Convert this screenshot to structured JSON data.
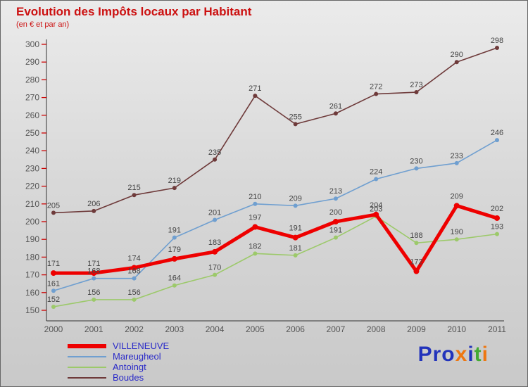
{
  "header": {
    "title": "Evolution des Impôts locaux par Habitant",
    "subtitle": "(en € et par an)"
  },
  "chart_data": {
    "type": "line",
    "title": "Evolution des Impôts locaux par Habitant",
    "subtitle": "(en € et par an)",
    "categories": [
      "2000",
      "2001",
      "2002",
      "2003",
      "2004",
      "2005",
      "2006",
      "2007",
      "2008",
      "2009",
      "2010",
      "2011"
    ],
    "series": [
      {
        "name": "VILLENEUVE",
        "color": "#ee0000",
        "width": 5,
        "marker": 4,
        "values": [
          171,
          171,
          174,
          179,
          183,
          197,
          191,
          200,
          204,
          172,
          209,
          202
        ]
      },
      {
        "name": "Mareugheol",
        "color": "#6f9fd0",
        "width": 1.6,
        "marker": 3,
        "values": [
          161,
          168,
          168,
          191,
          201,
          210,
          209,
          213,
          224,
          230,
          233,
          246
        ]
      },
      {
        "name": "Antoingt",
        "color": "#9cc96a",
        "width": 1.6,
        "marker": 3,
        "values": [
          152,
          156,
          156,
          164,
          170,
          182,
          181,
          191,
          203,
          188,
          190,
          193
        ]
      },
      {
        "name": "Boudes",
        "color": "#6e3a3a",
        "width": 1.6,
        "marker": 3,
        "values": [
          205,
          206,
          215,
          219,
          235,
          271,
          255,
          261,
          272,
          273,
          290,
          298
        ]
      }
    ],
    "ylim": [
      150,
      300
    ],
    "ytick_step": 10,
    "grid": false,
    "legend_position": "bottom-left",
    "axis_color": "#333333",
    "tick_color": "#cc0000",
    "label_color": "#444444",
    "axis_text_color": "#555555"
  },
  "legend": {
    "items": [
      {
        "label": "VILLENEUVE"
      },
      {
        "label": "Mareugheol"
      },
      {
        "label": "Antoingt"
      },
      {
        "label": "Boudes"
      }
    ]
  },
  "logo": {
    "letters": [
      {
        "ch": "P",
        "color": "#2233bb"
      },
      {
        "ch": "r",
        "color": "#2233bb"
      },
      {
        "ch": "o",
        "color": "#2233bb"
      },
      {
        "ch": "x",
        "color": "#ee7711"
      },
      {
        "ch": "i",
        "color": "#2233bb"
      },
      {
        "ch": "t",
        "color": "#44aa33"
      },
      {
        "ch": "i",
        "color": "#ee7711"
      }
    ]
  }
}
